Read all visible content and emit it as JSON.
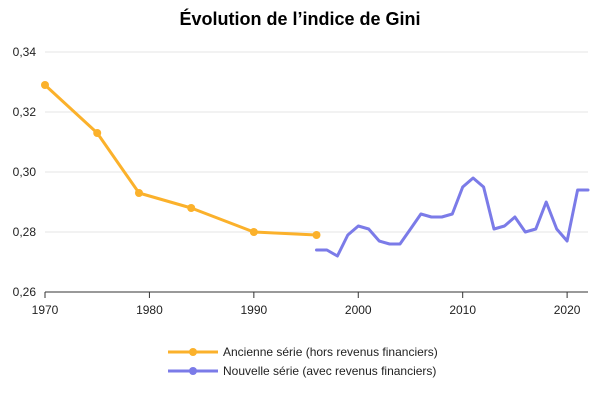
{
  "chart_data": {
    "type": "line",
    "title": "Évolution de l’indice de Gini",
    "xlabel": "",
    "ylabel": "",
    "xlim": [
      1970,
      2022
    ],
    "ylim": [
      0.26,
      0.34
    ],
    "x_ticks": [
      1970,
      1980,
      1990,
      2000,
      2010,
      2020
    ],
    "y_ticks": [
      {
        "value": 0.26,
        "label": "0,26"
      },
      {
        "value": 0.28,
        "label": "0,28"
      },
      {
        "value": 0.3,
        "label": "0,30"
      },
      {
        "value": 0.32,
        "label": "0,32"
      },
      {
        "value": 0.34,
        "label": "0,34"
      }
    ],
    "grid": true,
    "legend_position": "bottom-center",
    "series": [
      {
        "name": "Ancienne série (hors revenus financiers)",
        "color": "#FBB12B",
        "markers": true,
        "x": [
          1970,
          1975,
          1979,
          1984,
          1990,
          1996
        ],
        "y": [
          0.329,
          0.313,
          0.293,
          0.288,
          0.28,
          0.279
        ]
      },
      {
        "name": "Nouvelle série (avec revenus financiers)",
        "color": "#7B7BE8",
        "markers": false,
        "x": [
          1996,
          1997,
          1998,
          1999,
          2000,
          2001,
          2002,
          2003,
          2004,
          2005,
          2006,
          2007,
          2008,
          2009,
          2010,
          2011,
          2012,
          2013,
          2014,
          2015,
          2016,
          2017,
          2018,
          2019,
          2020,
          2021,
          2022
        ],
        "y": [
          0.274,
          0.274,
          0.272,
          0.279,
          0.282,
          0.281,
          0.277,
          0.276,
          0.276,
          0.281,
          0.286,
          0.285,
          0.285,
          0.286,
          0.295,
          0.298,
          0.295,
          0.281,
          0.282,
          0.285,
          0.28,
          0.281,
          0.29,
          0.281,
          0.277,
          0.294,
          0.294
        ]
      }
    ]
  }
}
